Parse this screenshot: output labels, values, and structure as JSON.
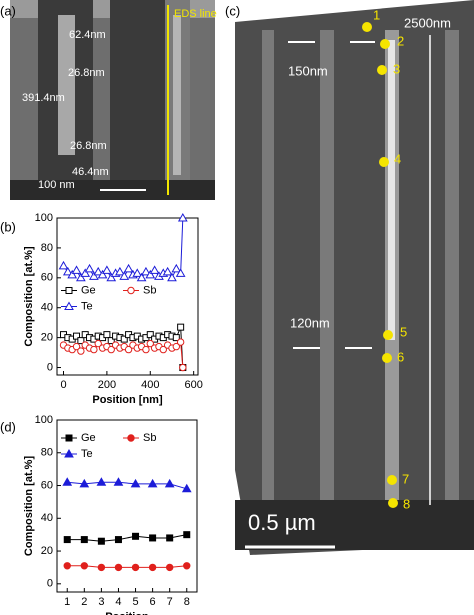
{
  "figure_a": {
    "label": "(a)",
    "annotations": [
      "62.4nm",
      "26.8nm",
      "391.4nm",
      "26.8nm",
      "46.4nm",
      "100 nm"
    ],
    "eds_line": "EDS line"
  },
  "figure_c": {
    "label": "(c)",
    "points": [
      "1",
      "2",
      "3",
      "4",
      "5",
      "6",
      "7",
      "8"
    ],
    "annotations": [
      "2500nm",
      "150nm",
      "120nm"
    ],
    "scale_bar": "0.5 µm"
  },
  "chart_data": [
    {
      "type": "line",
      "label": "(b)",
      "xlabel": "Position [nm]",
      "ylabel": "Composition [at.%]",
      "xlim": [
        -30,
        620
      ],
      "ylim": [
        -5,
        100
      ],
      "xticks": [
        0,
        200,
        400,
        600
      ],
      "yticks": [
        0,
        20,
        40,
        60,
        80,
        100
      ],
      "filled_markers": false,
      "legend": "center left",
      "x": [
        0,
        20,
        40,
        60,
        80,
        100,
        120,
        140,
        160,
        180,
        200,
        220,
        240,
        260,
        280,
        300,
        320,
        340,
        360,
        380,
        400,
        420,
        440,
        460,
        480,
        500,
        520,
        540,
        550
      ],
      "series": [
        {
          "name": "Ge",
          "color": "#000000",
          "marker": "square",
          "values": [
            22,
            20,
            19,
            21,
            18,
            22,
            20,
            19,
            21,
            20,
            22,
            18,
            21,
            20,
            19,
            22,
            20,
            21,
            19,
            20,
            22,
            19,
            21,
            20,
            22,
            21,
            20,
            27,
            0
          ]
        },
        {
          "name": "Sb",
          "color": "#e0201c",
          "marker": "circle",
          "values": [
            15,
            13,
            12,
            14,
            11,
            15,
            13,
            12,
            16,
            13,
            14,
            12,
            15,
            13,
            14,
            12,
            15,
            13,
            14,
            12,
            16,
            13,
            14,
            12,
            15,
            13,
            14,
            17,
            0
          ]
        },
        {
          "name": "Te",
          "color": "#1c1cd8",
          "marker": "triangle",
          "values": [
            68,
            64,
            62,
            65,
            60,
            63,
            66,
            61,
            64,
            62,
            65,
            60,
            63,
            64,
            61,
            66,
            62,
            63,
            60,
            64,
            62,
            65,
            61,
            63,
            64,
            60,
            66,
            63,
            100
          ]
        }
      ]
    },
    {
      "type": "line",
      "label": "(d)",
      "xlabel": "Position",
      "ylabel": "Composition [at.%]",
      "xlim": [
        0.4,
        8.6
      ],
      "ylim": [
        -5,
        100
      ],
      "xticks": [
        1,
        2,
        3,
        4,
        5,
        6,
        7,
        8
      ],
      "yticks": [
        0,
        20,
        40,
        60,
        80,
        100
      ],
      "filled_markers": true,
      "legend": "upper left",
      "x": [
        1,
        2,
        3,
        4,
        5,
        6,
        7,
        8
      ],
      "series": [
        {
          "name": "Ge",
          "color": "#000000",
          "marker": "square",
          "values": [
            27,
            27,
            26,
            27,
            29,
            28,
            28,
            30
          ]
        },
        {
          "name": "Sb",
          "color": "#e0201c",
          "marker": "circle",
          "values": [
            11,
            11,
            10,
            10,
            10,
            10,
            10,
            11
          ]
        },
        {
          "name": "Te",
          "color": "#1c1cd8",
          "marker": "triangle",
          "values": [
            62,
            61,
            62,
            62,
            61,
            61,
            61,
            58
          ]
        }
      ]
    }
  ]
}
